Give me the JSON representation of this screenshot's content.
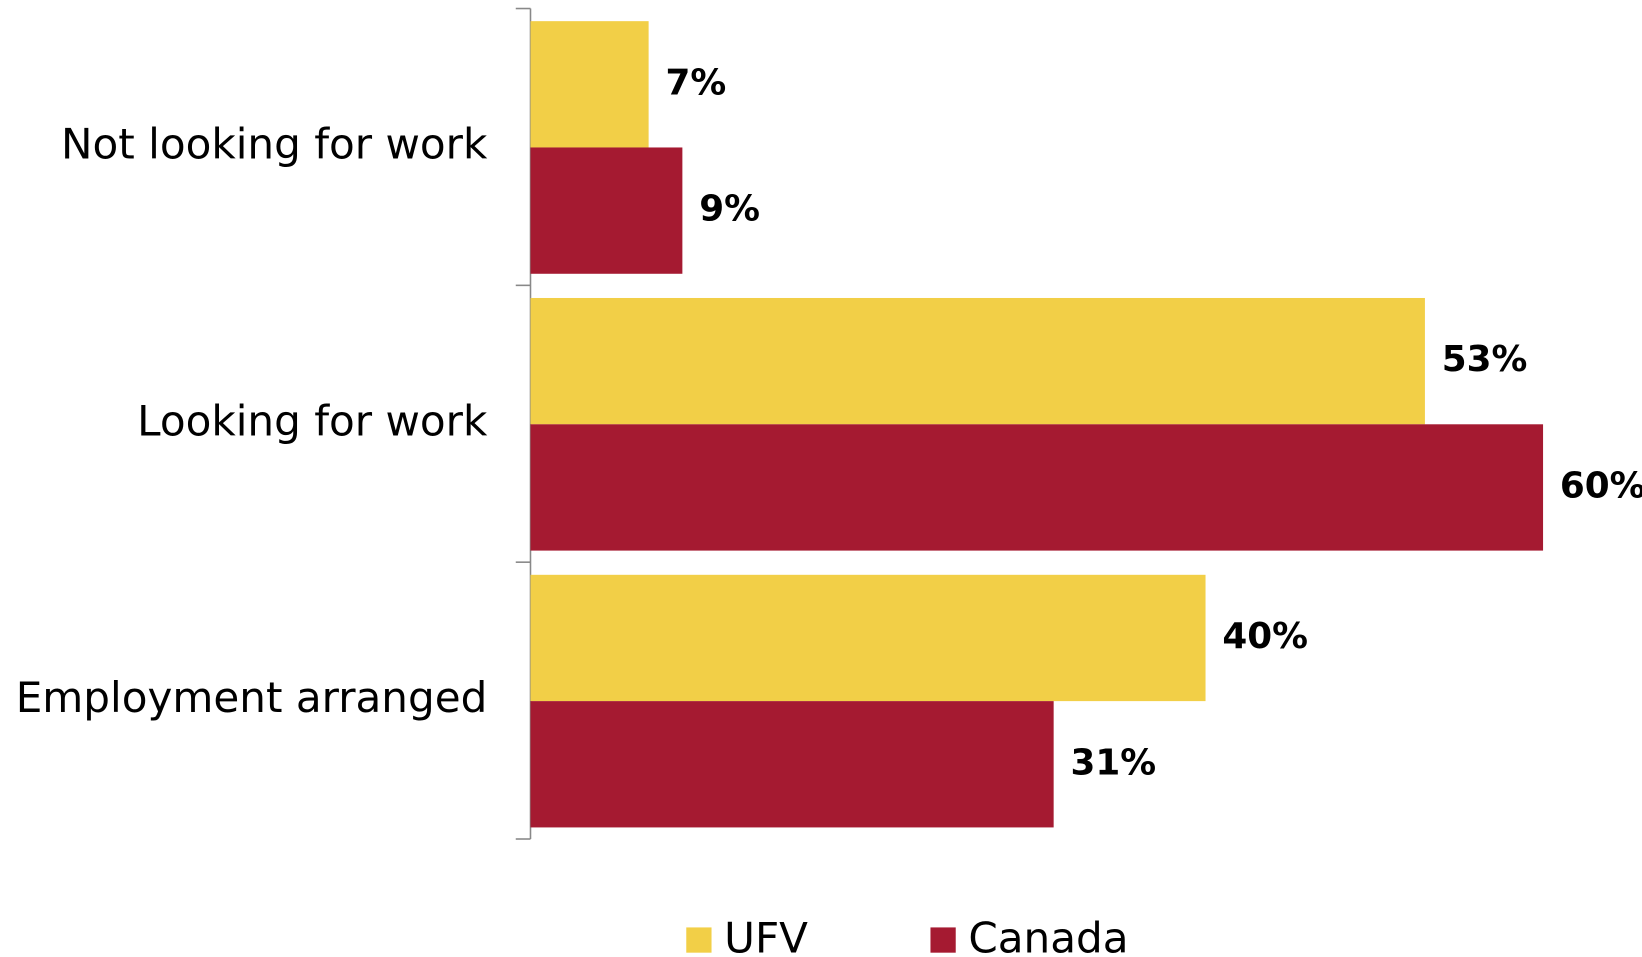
{
  "chart_data": {
    "type": "hbar",
    "categories": [
      "Not looking for work",
      "Looking for work",
      "Employment arranged"
    ],
    "series": [
      {
        "name": "UFV",
        "color": "#f2cf47",
        "values": [
          7,
          53,
          40
        ],
        "value_labels": [
          "7%",
          "53%",
          "40%"
        ]
      },
      {
        "name": "Canada",
        "color": "#a51a31",
        "values": [
          9,
          60,
          31
        ],
        "value_labels": [
          "9%",
          "60%",
          "31%"
        ]
      }
    ],
    "legend": "bottom"
  }
}
